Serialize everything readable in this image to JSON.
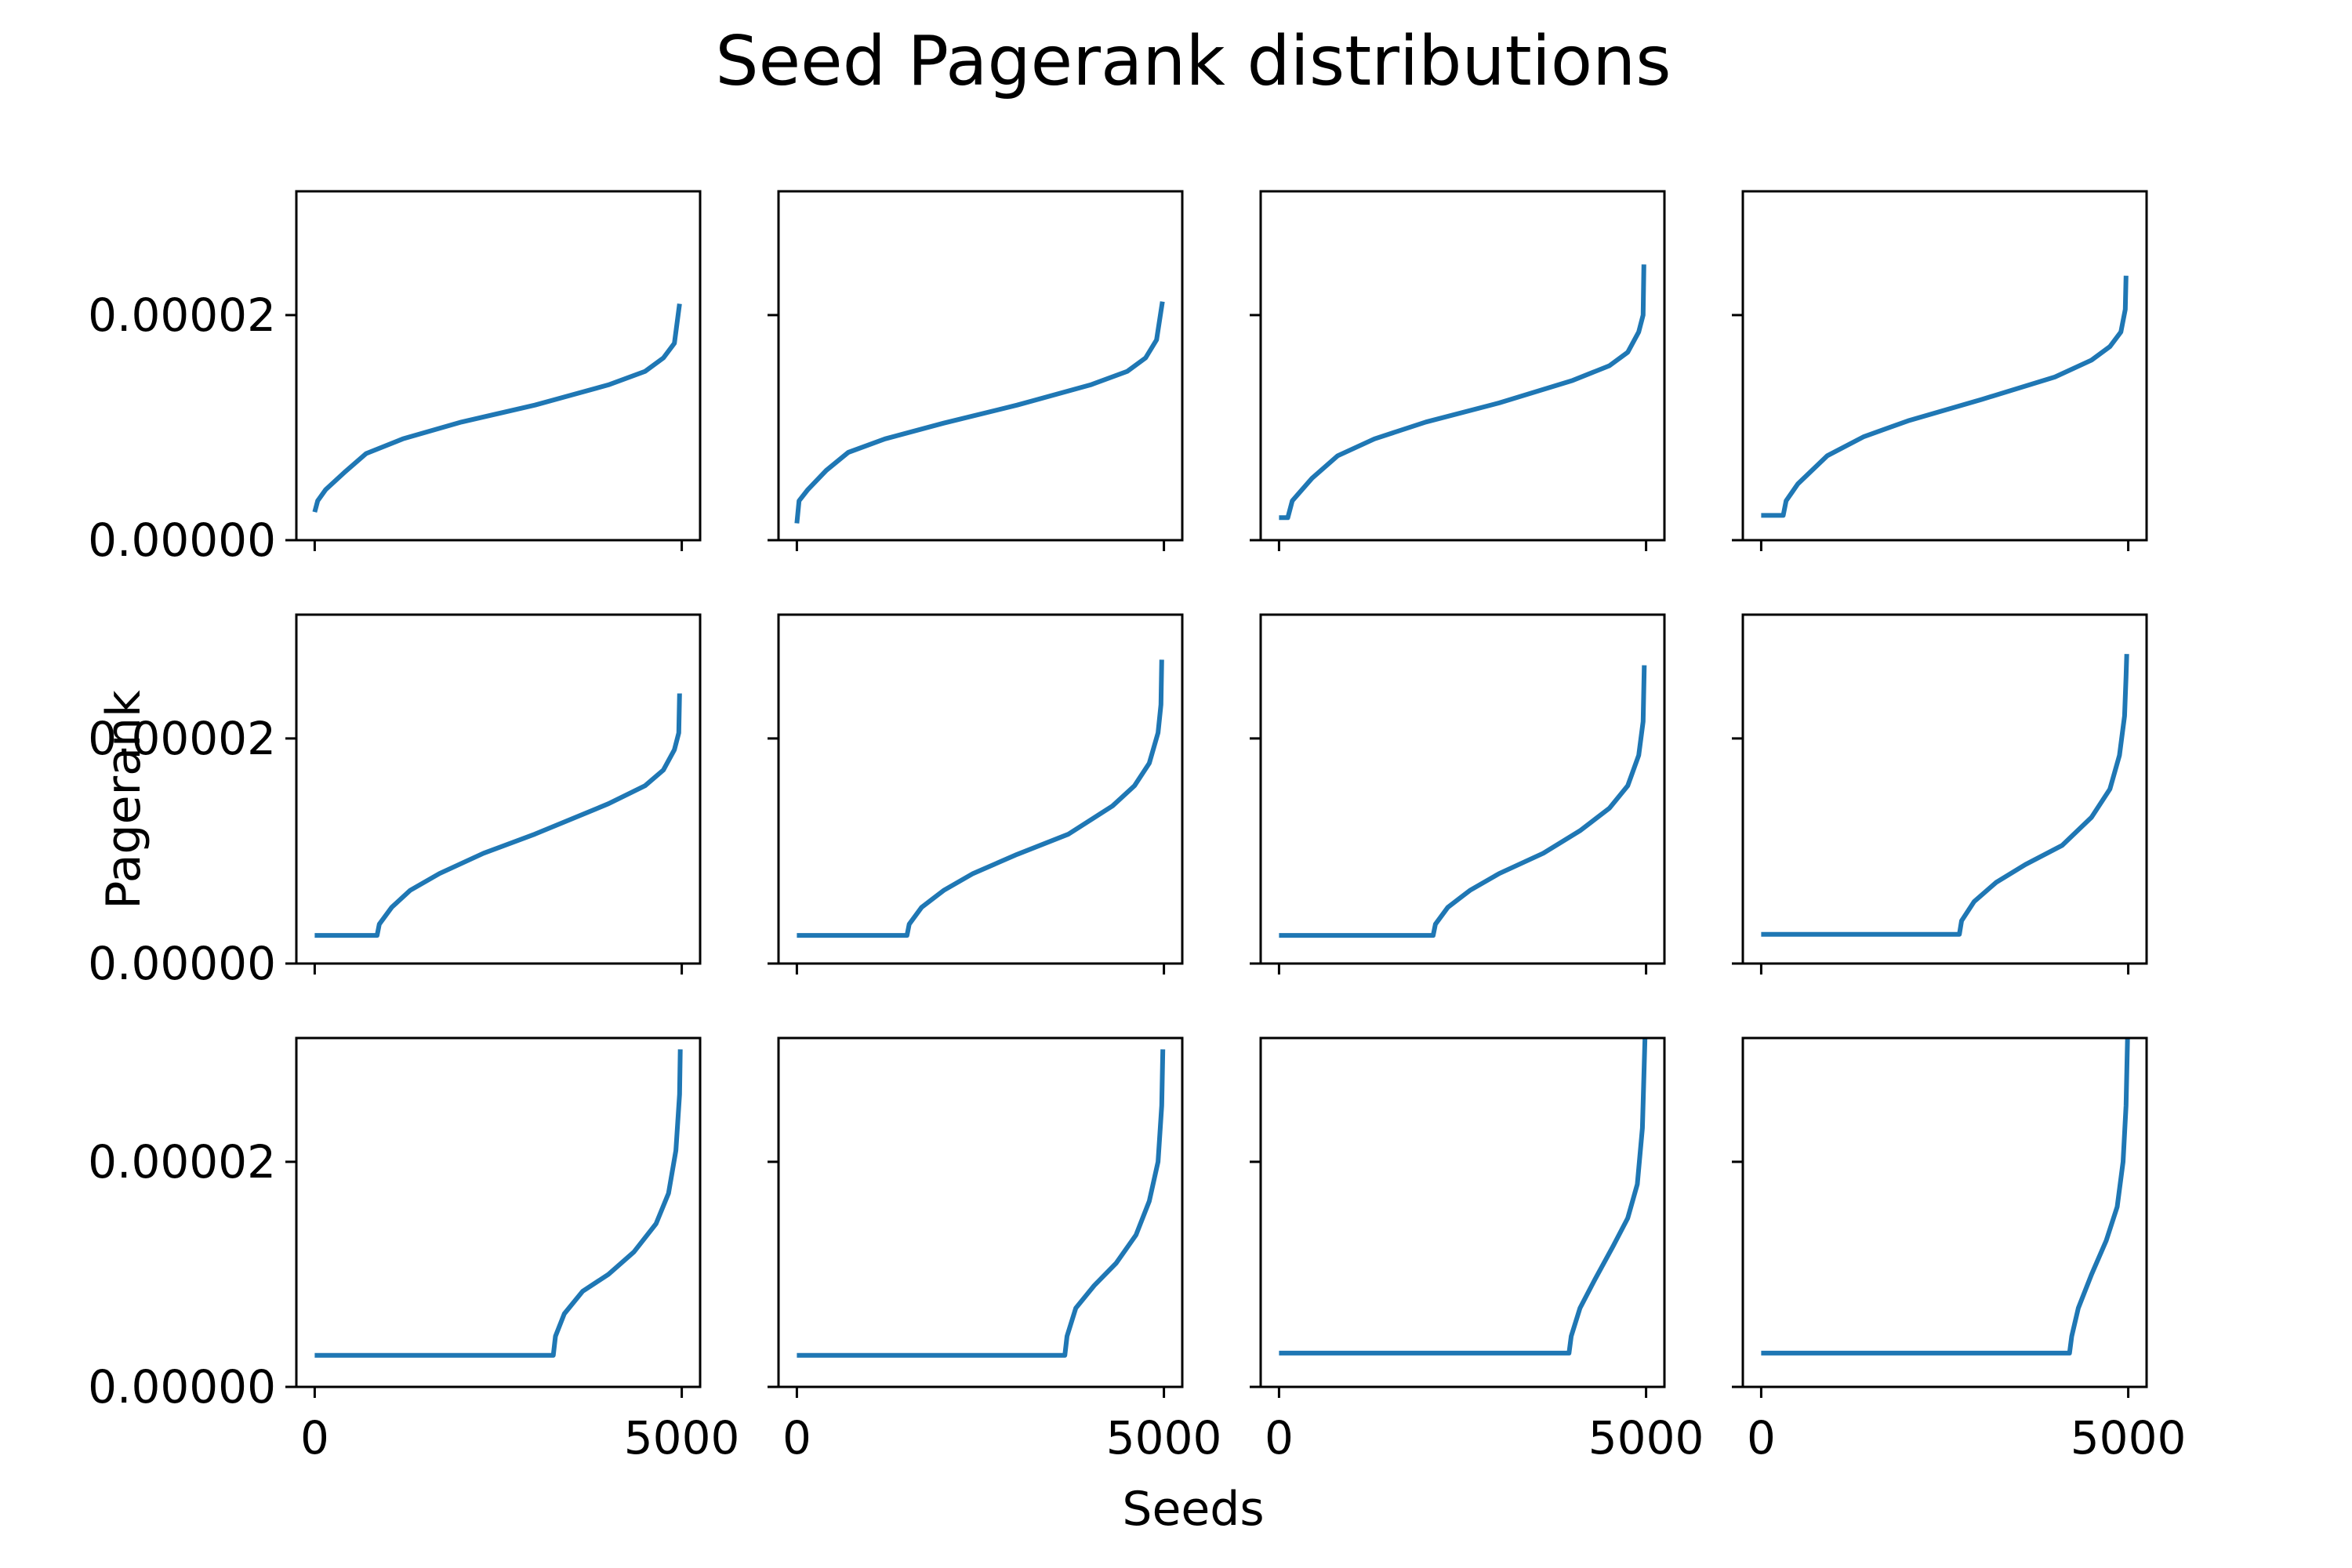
{
  "figure": {
    "title": "Seed Pagerank distributions",
    "xlabel": "Seeds",
    "ylabel": "Pagerank",
    "line_color": "#1f77b4"
  },
  "chart_data": {
    "type": "line",
    "layout": "3x4 grid, shared axes",
    "xlim": [
      -250,
      5250
    ],
    "ylim": [
      0,
      3.1e-05
    ],
    "x_ticks": [
      0,
      5000
    ],
    "x_tick_labels": [
      "0",
      "5000"
    ],
    "y_ticks": [
      0,
      2e-05
    ],
    "y_tick_labels": [
      "0.00000",
      "0.00002"
    ],
    "grid": false,
    "legend": "none",
    "panels": [
      {
        "points": [
          [
            0,
            2.5e-06
          ],
          [
            40,
            3.5e-06
          ],
          [
            150,
            4.5e-06
          ],
          [
            400,
            6e-06
          ],
          [
            700,
            7.7e-06
          ],
          [
            1200,
            9e-06
          ],
          [
            2000,
            1.05e-05
          ],
          [
            3000,
            1.2e-05
          ],
          [
            4000,
            1.38e-05
          ],
          [
            4500,
            1.5e-05
          ],
          [
            4750,
            1.62e-05
          ],
          [
            4900,
            1.75e-05
          ],
          [
            4970,
            2.1e-05
          ]
        ]
      },
      {
        "points": [
          [
            0,
            1.5e-06
          ],
          [
            30,
            3.5e-06
          ],
          [
            150,
            4.5e-06
          ],
          [
            400,
            6.2e-06
          ],
          [
            700,
            7.8e-06
          ],
          [
            1200,
            9e-06
          ],
          [
            2000,
            1.04e-05
          ],
          [
            3000,
            1.2e-05
          ],
          [
            4000,
            1.38e-05
          ],
          [
            4500,
            1.5e-05
          ],
          [
            4750,
            1.62e-05
          ],
          [
            4900,
            1.78e-05
          ],
          [
            4980,
            2.12e-05
          ]
        ]
      },
      {
        "points": [
          [
            0,
            2e-06
          ],
          [
            120,
            2e-06
          ],
          [
            180,
            3.5e-06
          ],
          [
            450,
            5.5e-06
          ],
          [
            800,
            7.5e-06
          ],
          [
            1300,
            9e-06
          ],
          [
            2000,
            1.05e-05
          ],
          [
            3000,
            1.22e-05
          ],
          [
            4000,
            1.42e-05
          ],
          [
            4500,
            1.55e-05
          ],
          [
            4750,
            1.67e-05
          ],
          [
            4900,
            1.85e-05
          ],
          [
            4960,
            2e-05
          ],
          [
            4970,
            2.45e-05
          ]
        ]
      },
      {
        "points": [
          [
            0,
            2.2e-06
          ],
          [
            300,
            2.2e-06
          ],
          [
            340,
            3.5e-06
          ],
          [
            500,
            5e-06
          ],
          [
            900,
            7.5e-06
          ],
          [
            1400,
            9.2e-06
          ],
          [
            2000,
            1.06e-05
          ],
          [
            3000,
            1.25e-05
          ],
          [
            4000,
            1.45e-05
          ],
          [
            4500,
            1.6e-05
          ],
          [
            4750,
            1.72e-05
          ],
          [
            4900,
            1.85e-05
          ],
          [
            4960,
            2.05e-05
          ],
          [
            4970,
            2.35e-05
          ]
        ]
      },
      {
        "points": [
          [
            0,
            2.5e-06
          ],
          [
            850,
            2.5e-06
          ],
          [
            880,
            3.5e-06
          ],
          [
            1050,
            5e-06
          ],
          [
            1300,
            6.5e-06
          ],
          [
            1700,
            8e-06
          ],
          [
            2300,
            9.8e-06
          ],
          [
            3000,
            1.15e-05
          ],
          [
            4000,
            1.42e-05
          ],
          [
            4500,
            1.58e-05
          ],
          [
            4750,
            1.72e-05
          ],
          [
            4900,
            1.9e-05
          ],
          [
            4960,
            2.05e-05
          ],
          [
            4970,
            2.4e-05
          ]
        ]
      },
      {
        "points": [
          [
            0,
            2.5e-06
          ],
          [
            1500,
            2.5e-06
          ],
          [
            1530,
            3.5e-06
          ],
          [
            1700,
            5e-06
          ],
          [
            2000,
            6.5e-06
          ],
          [
            2400,
            8e-06
          ],
          [
            3000,
            9.7e-06
          ],
          [
            3700,
            1.15e-05
          ],
          [
            4300,
            1.4e-05
          ],
          [
            4600,
            1.58e-05
          ],
          [
            4800,
            1.78e-05
          ],
          [
            4920,
            2.05e-05
          ],
          [
            4960,
            2.3e-05
          ],
          [
            4970,
            2.7e-05
          ]
        ]
      },
      {
        "points": [
          [
            0,
            2.5e-06
          ],
          [
            2100,
            2.5e-06
          ],
          [
            2130,
            3.5e-06
          ],
          [
            2300,
            5e-06
          ],
          [
            2600,
            6.5e-06
          ],
          [
            3000,
            8e-06
          ],
          [
            3600,
            9.8e-06
          ],
          [
            4100,
            1.18e-05
          ],
          [
            4500,
            1.38e-05
          ],
          [
            4750,
            1.58e-05
          ],
          [
            4900,
            1.85e-05
          ],
          [
            4960,
            2.15e-05
          ],
          [
            4975,
            2.65e-05
          ]
        ]
      },
      {
        "points": [
          [
            0,
            2.6e-06
          ],
          [
            2700,
            2.6e-06
          ],
          [
            2730,
            3.8e-06
          ],
          [
            2900,
            5.5e-06
          ],
          [
            3200,
            7.2e-06
          ],
          [
            3600,
            8.8e-06
          ],
          [
            4100,
            1.05e-05
          ],
          [
            4500,
            1.3e-05
          ],
          [
            4750,
            1.55e-05
          ],
          [
            4880,
            1.85e-05
          ],
          [
            4950,
            2.2e-05
          ],
          [
            4970,
            2.55e-05
          ],
          [
            4980,
            2.75e-05
          ]
        ]
      },
      {
        "points": [
          [
            0,
            2.8e-06
          ],
          [
            3250,
            2.8e-06
          ],
          [
            3280,
            4.5e-06
          ],
          [
            3400,
            6.5e-06
          ],
          [
            3650,
            8.5e-06
          ],
          [
            4000,
            1e-05
          ],
          [
            4350,
            1.2e-05
          ],
          [
            4650,
            1.45e-05
          ],
          [
            4820,
            1.72e-05
          ],
          [
            4920,
            2.1e-05
          ],
          [
            4970,
            2.6e-05
          ],
          [
            4980,
            3e-05
          ]
        ]
      },
      {
        "points": [
          [
            0,
            2.8e-06
          ],
          [
            3650,
            2.8e-06
          ],
          [
            3680,
            4.5e-06
          ],
          [
            3800,
            7e-06
          ],
          [
            4050,
            9e-06
          ],
          [
            4350,
            1.1e-05
          ],
          [
            4620,
            1.35e-05
          ],
          [
            4800,
            1.65e-05
          ],
          [
            4920,
            2e-05
          ],
          [
            4970,
            2.5e-05
          ],
          [
            4985,
            3e-05
          ]
        ]
      },
      {
        "points": [
          [
            0,
            3e-06
          ],
          [
            3950,
            3e-06
          ],
          [
            3980,
            4.5e-06
          ],
          [
            4100,
            7e-06
          ],
          [
            4300,
            9.5e-06
          ],
          [
            4550,
            1.25e-05
          ],
          [
            4750,
            1.5e-05
          ],
          [
            4880,
            1.8e-05
          ],
          [
            4950,
            2.3e-05
          ],
          [
            4985,
            3.1e-05
          ]
        ]
      },
      {
        "points": [
          [
            0,
            3e-06
          ],
          [
            4200,
            3e-06
          ],
          [
            4230,
            4.5e-06
          ],
          [
            4320,
            7e-06
          ],
          [
            4500,
            1e-05
          ],
          [
            4700,
            1.3e-05
          ],
          [
            4850,
            1.6e-05
          ],
          [
            4930,
            2e-05
          ],
          [
            4970,
            2.5e-05
          ],
          [
            4990,
            3.1e-05
          ]
        ]
      }
    ]
  }
}
